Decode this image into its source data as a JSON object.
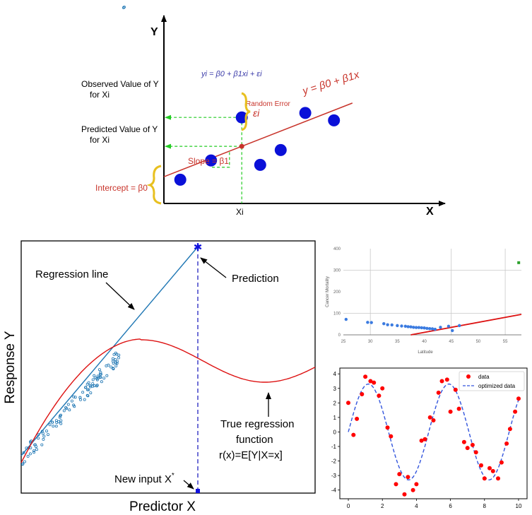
{
  "chart_data": [
    {
      "type": "scatter",
      "title": "",
      "xlabel": "X",
      "ylabel": "Y",
      "x_tick_label": "Xi",
      "points": [
        {
          "x": 0.8,
          "y": 1.6
        },
        {
          "x": 2.3,
          "y": 2.9
        },
        {
          "x": 3.8,
          "y": 5.8
        },
        {
          "x": 4.7,
          "y": 2.6
        },
        {
          "x": 5.7,
          "y": 3.6
        },
        {
          "x": 6.9,
          "y": 6.1
        },
        {
          "x": 8.3,
          "y": 5.6
        }
      ],
      "regression_line": {
        "intercept": 1.8,
        "slope": 0.54
      },
      "equation_line": "y = β0 + β1x",
      "equation_model": "yi = β0 + β1xi + εi",
      "labels": {
        "observed": "Observed Value of Y for Xi",
        "predicted": "Predicted Value of Y for Xi",
        "random_error": "Random Error",
        "epsilon": "εi",
        "slope": "Slope = β1",
        "intercept": "Intercept = β0"
      },
      "colors": {
        "points": "#0a10d8",
        "line": "#c8342b",
        "guides": "#22cc22",
        "brace": "#e8c020"
      }
    },
    {
      "type": "line",
      "xlabel": "Predictor X",
      "ylabel": "Response Y",
      "annotations": {
        "regression_line": "Regression line",
        "prediction": "Prediction",
        "true_function_1": "True regression",
        "true_function_2": "function",
        "true_function_3": "r(x)=E[Y|X=x]",
        "new_input": "New input X"
      },
      "series": [
        {
          "name": "Regression line",
          "color": "#1f77b4"
        },
        {
          "name": "True regression function",
          "color": "#dd1111"
        }
      ]
    },
    {
      "type": "scatter",
      "xlabel": "Latitude",
      "ylabel": "Cancer Mortality",
      "xlim": [
        25,
        58
      ],
      "ylim": [
        0,
        400
      ],
      "x_ticks": [
        25,
        30,
        35,
        40,
        45,
        50,
        55
      ],
      "y_ticks": [
        0,
        100,
        200,
        300,
        400
      ],
      "points": [
        {
          "x": 25.5,
          "y": 72
        },
        {
          "x": 29.5,
          "y": 58
        },
        {
          "x": 30.2,
          "y": 57
        },
        {
          "x": 32.5,
          "y": 52
        },
        {
          "x": 33.2,
          "y": 47
        },
        {
          "x": 34.0,
          "y": 46
        },
        {
          "x": 35.0,
          "y": 43
        },
        {
          "x": 35.8,
          "y": 41
        },
        {
          "x": 36.5,
          "y": 40
        },
        {
          "x": 37.0,
          "y": 38
        },
        {
          "x": 37.5,
          "y": 37
        },
        {
          "x": 38.0,
          "y": 35
        },
        {
          "x": 38.5,
          "y": 34
        },
        {
          "x": 39.0,
          "y": 34
        },
        {
          "x": 39.5,
          "y": 33
        },
        {
          "x": 40.0,
          "y": 32
        },
        {
          "x": 40.5,
          "y": 30
        },
        {
          "x": 41.0,
          "y": 29
        },
        {
          "x": 41.5,
          "y": 28
        },
        {
          "x": 42.0,
          "y": 26
        },
        {
          "x": 43.0,
          "y": 35
        },
        {
          "x": 44.5,
          "y": 40
        },
        {
          "x": 45.2,
          "y": 20
        },
        {
          "x": 46.5,
          "y": 43
        }
      ],
      "outlier": {
        "x": 57.5,
        "y": 335
      },
      "regression_line": {
        "x": [
          37.5,
          58
        ],
        "y": [
          0,
          95
        ]
      },
      "colors": {
        "points": "#3b7be0",
        "line": "#dd1111",
        "outlier": "#2ca02c"
      }
    },
    {
      "type": "scatter",
      "xlim": [
        -0.5,
        10.5
      ],
      "ylim": [
        -4.6,
        4.4
      ],
      "x_ticks": [
        0,
        2,
        4,
        6,
        8,
        10
      ],
      "y_ticks": [
        -4,
        -3,
        -2,
        -1,
        0,
        1,
        2,
        3,
        4
      ],
      "legend_position": "top-right",
      "series": [
        {
          "name": "data",
          "style": "points",
          "color": "#ff0000",
          "x": [
            0.0,
            0.3,
            0.5,
            0.8,
            1.0,
            1.3,
            1.5,
            1.8,
            2.0,
            2.3,
            2.5,
            2.8,
            3.0,
            3.3,
            3.5,
            3.8,
            4.0,
            4.3,
            4.5,
            4.8,
            5.0,
            5.3,
            5.5,
            5.8,
            6.0,
            6.3,
            6.5,
            6.8,
            7.0,
            7.3,
            7.5,
            7.8,
            8.0,
            8.3,
            8.5,
            8.8,
            9.0,
            9.3,
            9.5,
            9.8,
            10.0
          ],
          "y": [
            2.0,
            -0.2,
            0.9,
            2.6,
            3.8,
            3.5,
            3.4,
            2.5,
            3.0,
            0.3,
            -0.3,
            -3.6,
            -2.9,
            -4.3,
            -3.1,
            -4.0,
            -3.6,
            -0.6,
            -0.5,
            1.0,
            0.8,
            2.7,
            3.5,
            3.6,
            1.4,
            2.9,
            1.6,
            -0.7,
            -1.1,
            -0.9,
            -1.4,
            -2.3,
            -3.2,
            -2.5,
            -2.7,
            -3.2,
            -2.1,
            -0.8,
            0.2,
            1.4,
            2.3
          ]
        },
        {
          "name": "optimized data",
          "style": "dashed-line",
          "color": "#3355dd",
          "function": "3.3*sin(1.33*x)",
          "amplitude": 3.3,
          "frequency": 1.33
        }
      ]
    }
  ]
}
